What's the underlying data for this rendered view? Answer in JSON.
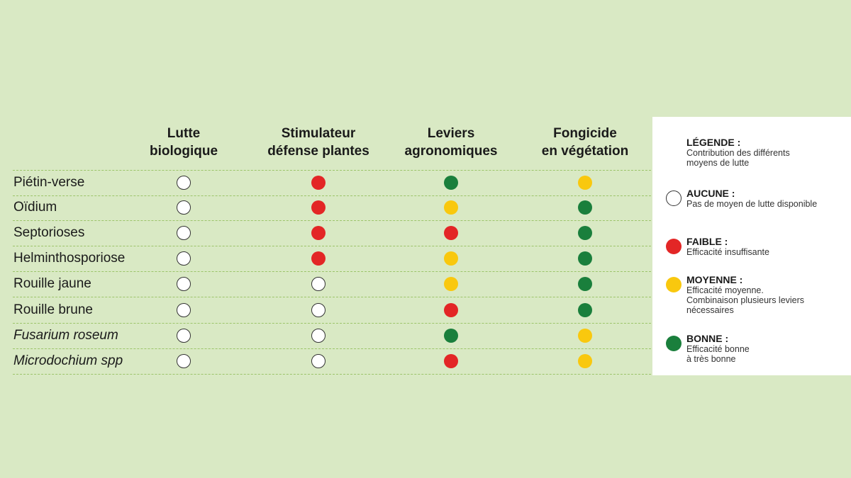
{
  "chart_data": {
    "type": "table",
    "columns": [
      {
        "line1": "Lutte",
        "line2": "biologique"
      },
      {
        "line1": "Stimulateur",
        "line2": "défense plantes"
      },
      {
        "line1": "Leviers",
        "line2": "agronomiques"
      },
      {
        "line1": "Fongicide",
        "line2": "en végétation"
      }
    ],
    "rows": [
      {
        "label": "Piétin-verse",
        "italic": false,
        "values": [
          "aucune",
          "faible",
          "bonne",
          "moyenne"
        ]
      },
      {
        "label": "Oïdium",
        "italic": false,
        "values": [
          "aucune",
          "faible",
          "moyenne",
          "bonne"
        ]
      },
      {
        "label": "Septorioses",
        "italic": false,
        "values": [
          "aucune",
          "faible",
          "faible",
          "bonne"
        ]
      },
      {
        "label": "Helminthosporiose",
        "italic": false,
        "values": [
          "aucune",
          "faible",
          "moyenne",
          "bonne"
        ]
      },
      {
        "label": "Rouille jaune",
        "italic": false,
        "values": [
          "aucune",
          "aucune",
          "moyenne",
          "bonne"
        ]
      },
      {
        "label": "Rouille brune",
        "italic": false,
        "values": [
          "aucune",
          "aucune",
          "faible",
          "bonne"
        ]
      },
      {
        "label": "Fusarium roseum",
        "italic": true,
        "values": [
          "aucune",
          "aucune",
          "bonne",
          "moyenne"
        ]
      },
      {
        "label": "Microdochium spp",
        "italic": true,
        "values": [
          "aucune",
          "aucune",
          "faible",
          "moyenne"
        ]
      }
    ],
    "levels": {
      "aucune": "#ffffff",
      "faible": "#e32626",
      "moyenne": "#f9c80e",
      "bonne": "#1a7f3c"
    }
  },
  "legend": {
    "title": "LÉGENDE :",
    "subtitle_lines": [
      "Contribution des différents",
      "moyens de lutte"
    ],
    "items": [
      {
        "key": "aucune",
        "title": "AUCUNE :",
        "desc_lines": [
          "Pas de moyen de lutte disponible"
        ]
      },
      {
        "key": "faible",
        "title": "FAIBLE :",
        "desc_lines": [
          "Efficacité insuffisante"
        ]
      },
      {
        "key": "moyenne",
        "title": "MOYENNE :",
        "desc_lines": [
          "Efficacité moyenne.",
          "Combinaison plusieurs leviers",
          "nécessaires"
        ]
      },
      {
        "key": "bonne",
        "title": "BONNE :",
        "desc_lines": [
          "Efficacité bonne",
          "à très bonne"
        ]
      }
    ]
  }
}
